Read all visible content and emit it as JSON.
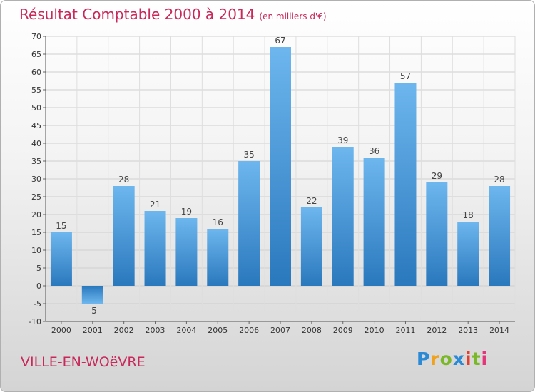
{
  "chart_data": {
    "type": "bar",
    "title": "Résultat Comptable 2000 à 2014",
    "subtitle": "(en milliers d'€)",
    "xlabel": "",
    "ylabel": "",
    "categories": [
      "2000",
      "2001",
      "2002",
      "2003",
      "2004",
      "2005",
      "2006",
      "2007",
      "2008",
      "2009",
      "2010",
      "2011",
      "2012",
      "2013",
      "2014"
    ],
    "values": [
      15,
      -5,
      28,
      21,
      19,
      16,
      35,
      67,
      22,
      39,
      36,
      57,
      29,
      18,
      28
    ],
    "ylim": [
      -10,
      70
    ],
    "yticks": [
      -10,
      -5,
      0,
      5,
      10,
      15,
      20,
      25,
      30,
      35,
      40,
      45,
      50,
      55,
      60,
      65,
      70
    ],
    "grid": true,
    "bar_color": "#3a8fd6"
  },
  "footer": {
    "place_name": "VILLE-EN-WOëVRE",
    "logo_text": "Proxiti"
  },
  "colors": {
    "title": "#c8285a",
    "bar_light": "#6db6ee",
    "bar_dark": "#2a78bd"
  }
}
